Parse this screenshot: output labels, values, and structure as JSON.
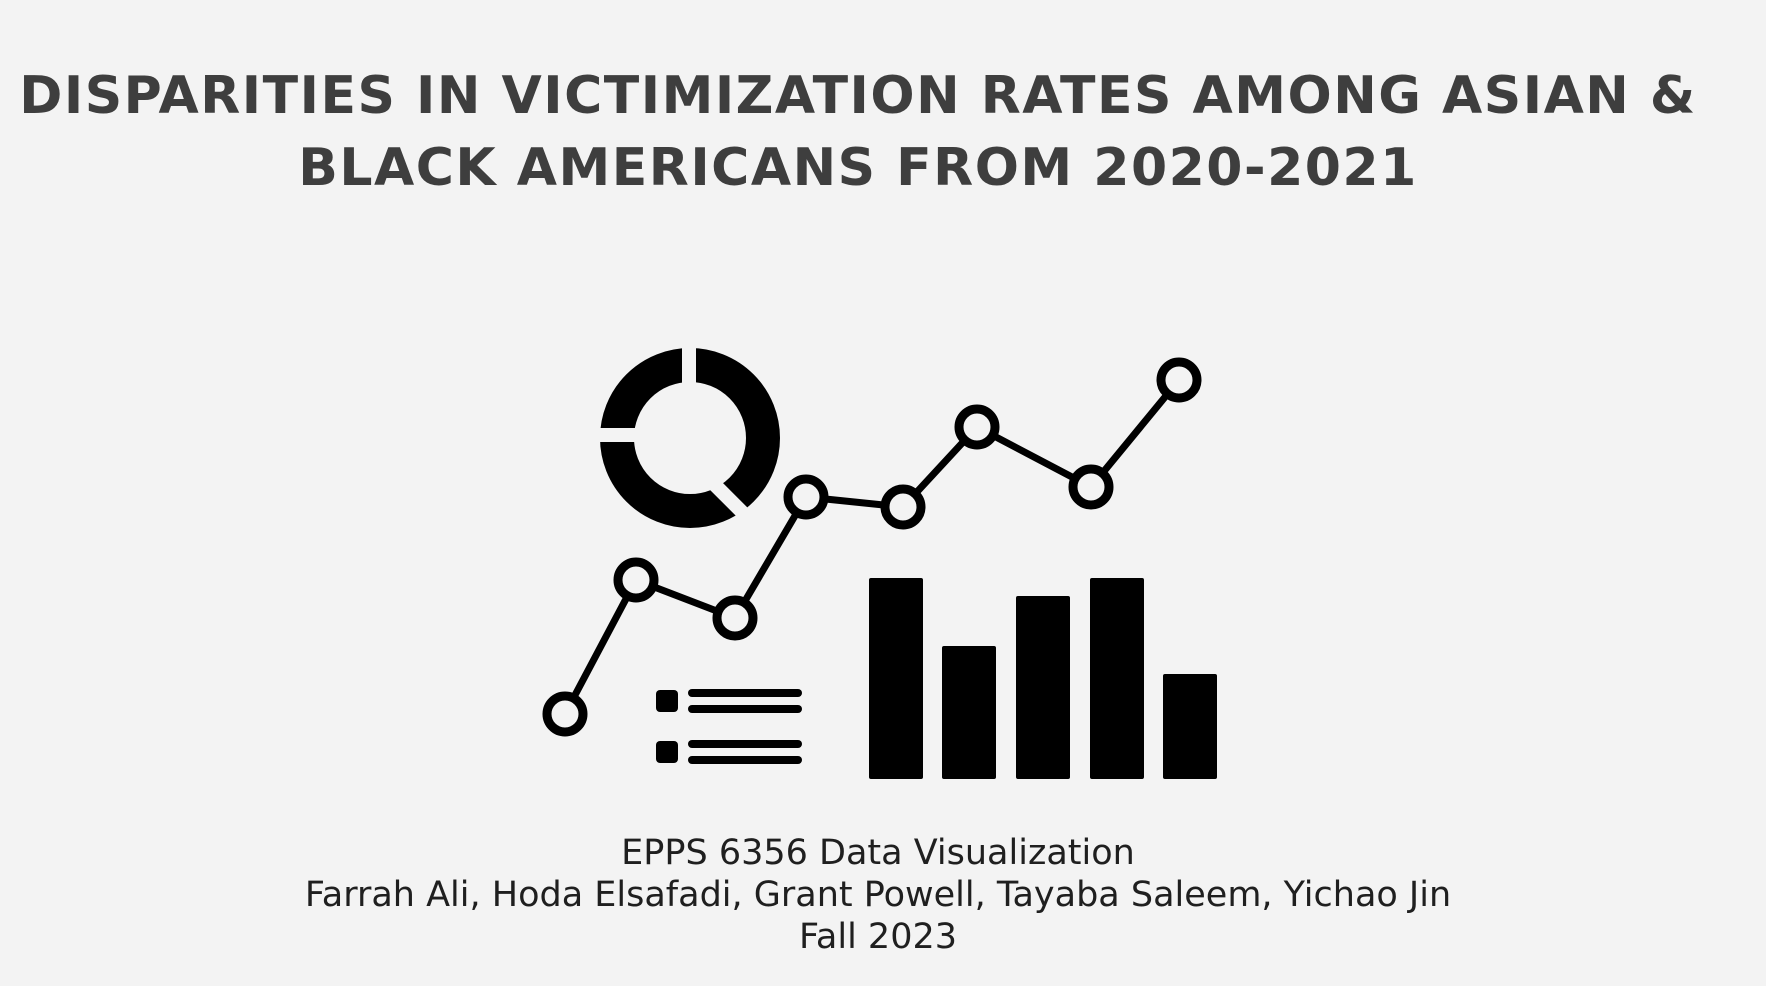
{
  "slide": {
    "title_line1": "DISPARITIES IN VICTIMIZATION RATES AMONG ASIAN &",
    "title_line2": "BLACK AMERICANS FROM 2020-2021",
    "course": "EPPS 6356 Data Visualization",
    "authors": "Farrah Ali, Hoda Elsafadi, Grant Powell, Tayaba Saleem, Yichao Jin",
    "term": "Fall 2023"
  },
  "colors": {
    "background": "#f3f3f3",
    "title": "#3e3e3e",
    "icon": "#000000",
    "text": "#1f1f1f"
  },
  "illustration": {
    "icon_name": "data-analytics-icon"
  }
}
